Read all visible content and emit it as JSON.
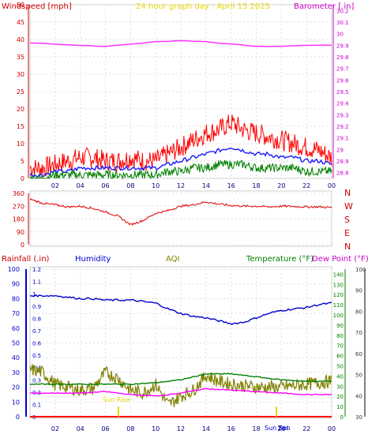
{
  "header": {
    "windspeed_label": "Windspeed [mph]",
    "title": "24 hour graph day : April 15 2025",
    "barometer_label": "Barometer [.in]"
  },
  "lower_header": {
    "rainfall_label": "Rainfall (.in)",
    "humidity_label": "Humidity",
    "aqi_label": "AQI",
    "temperature_label": "Temperature (°F)",
    "dewpoint_label": "Dew Point (°F)"
  },
  "direction_labels": [
    "N",
    "W",
    "S",
    "E",
    "N"
  ],
  "markers": {
    "sunrise": "Sun Rise",
    "sunset": "Sun Set",
    "zenith": "Zen"
  },
  "colors": {
    "wind_gust": "#ff0000",
    "wind_avg": "#1a1aff",
    "wind_speed": "#008000",
    "barometer": "#ff33ff",
    "direction": "#e00000",
    "humidity": "#0000cc",
    "aqi": "#808000",
    "temperature": "#008000",
    "dewpoint": "#ff00ff",
    "rain": "#ff0000",
    "title": "#ffff00"
  },
  "chart_data": [
    {
      "type": "line",
      "panel": "wind-barometer",
      "x_ticks": [
        "02",
        "04",
        "06",
        "08",
        "10",
        "12",
        "14",
        "16",
        "18",
        "20",
        "22",
        "00"
      ],
      "y_left": {
        "label": "Windspeed [mph]",
        "ticks": [
          0,
          5,
          10,
          15,
          20,
          25,
          30,
          35,
          40,
          45,
          50
        ],
        "ylim": [
          0,
          50
        ]
      },
      "y_right": {
        "label": "Barometer [.in]",
        "ticks": [
          "28.8",
          "28.9",
          "29",
          "29.1",
          "29.2",
          "29.3",
          "29.4",
          "29.5",
          "29.6",
          "29.7",
          "29.8",
          "29.9",
          "30",
          "30.1",
          "30.2"
        ],
        "ylim": [
          28.75,
          30.25
        ]
      },
      "series": [
        {
          "name": "Gust",
          "color": "#ff0000",
          "axis": "left",
          "hours": [
            0,
            1,
            2,
            3,
            4,
            5,
            6,
            7,
            8,
            9,
            10,
            11,
            12,
            13,
            14,
            15,
            16,
            17,
            18,
            19,
            20,
            21,
            22,
            23,
            24
          ],
          "values": [
            3,
            3,
            4,
            5,
            6,
            6,
            5,
            5,
            6,
            5,
            5,
            7,
            9,
            11,
            13,
            14,
            16,
            14,
            13,
            12,
            11,
            10,
            9,
            8,
            6
          ]
        },
        {
          "name": "Wind Avg",
          "color": "#1a1aff",
          "axis": "left",
          "hours": [
            0,
            1,
            2,
            3,
            4,
            5,
            6,
            7,
            8,
            9,
            10,
            11,
            12,
            13,
            14,
            15,
            16,
            17,
            18,
            19,
            20,
            21,
            22,
            23,
            24
          ],
          "values": [
            1,
            1,
            2,
            2,
            3,
            3,
            3,
            3,
            3,
            3,
            3,
            4,
            5,
            6,
            7,
            8,
            9,
            8,
            7,
            7,
            6,
            6,
            5,
            5,
            4
          ]
        },
        {
          "name": "Wind Speed",
          "color": "#008000",
          "axis": "left",
          "hours": [
            0,
            1,
            2,
            3,
            4,
            5,
            6,
            7,
            8,
            9,
            10,
            11,
            12,
            13,
            14,
            15,
            16,
            17,
            18,
            19,
            20,
            21,
            22,
            23,
            24
          ],
          "values": [
            0,
            0,
            1,
            1,
            1,
            1,
            1,
            1,
            1,
            1,
            1,
            2,
            2,
            3,
            3,
            4,
            4,
            4,
            3,
            3,
            3,
            3,
            2,
            2,
            2
          ]
        },
        {
          "name": "Barometer",
          "color": "#ff33ff",
          "axis": "right",
          "hours": [
            0,
            2,
            4,
            6,
            8,
            10,
            12,
            14,
            16,
            18,
            20,
            22,
            24
          ],
          "values": [
            29.92,
            29.91,
            29.9,
            29.89,
            29.91,
            29.93,
            29.94,
            29.93,
            29.91,
            29.89,
            29.89,
            29.9,
            29.9
          ]
        }
      ]
    },
    {
      "type": "line",
      "panel": "wind-direction",
      "y_ticks": [
        0,
        90,
        180,
        270,
        360
      ],
      "ylim": [
        0,
        360
      ],
      "series": [
        {
          "name": "Direction",
          "color": "#e00000",
          "hours": [
            0,
            1,
            2,
            3,
            4,
            5,
            6,
            7,
            8,
            9,
            10,
            11,
            12,
            13,
            14,
            15,
            16,
            17,
            18,
            19,
            20,
            21,
            22,
            23,
            24
          ],
          "values": [
            320,
            290,
            280,
            265,
            270,
            255,
            230,
            200,
            140,
            170,
            220,
            240,
            270,
            280,
            300,
            285,
            275,
            270,
            270,
            265,
            270,
            268,
            265,
            265,
            260
          ]
        }
      ]
    },
    {
      "type": "line",
      "panel": "climate",
      "x_ticks": [
        "02",
        "04",
        "06",
        "08",
        "10",
        "12",
        "14",
        "16",
        "18",
        "20",
        "22",
        "00"
      ],
      "y_rain": {
        "label": "Rainfall (.in)",
        "ticks": [
          0,
          0.1,
          0.2,
          0.3,
          0.4,
          0.5,
          0.6,
          0.7,
          0.8,
          0.9,
          1,
          1.1,
          1.2
        ],
        "ylim": [
          0,
          1.2
        ]
      },
      "y_humidity": {
        "label": "Humidity",
        "ticks": [
          0,
          10,
          20,
          30,
          40,
          50,
          60,
          70,
          80,
          90,
          100
        ],
        "ylim": [
          0,
          100
        ]
      },
      "y_temp": {
        "label": "Temperature (°F)",
        "ticks": [
          0,
          10,
          20,
          30,
          40,
          50,
          60,
          70,
          80,
          90,
          100,
          110,
          120,
          130,
          140
        ],
        "ylim": [
          0,
          145
        ]
      },
      "y_dew": {
        "label": "Dew Point (°F)",
        "ticks": [
          30,
          40,
          50,
          60,
          70,
          80,
          90,
          100
        ],
        "ylim": [
          30,
          100
        ]
      },
      "series": [
        {
          "name": "Humidity",
          "color": "#0000cc",
          "axis": "humidity",
          "hours": [
            0,
            1,
            2,
            3,
            4,
            5,
            6,
            7,
            8,
            9,
            10,
            11,
            12,
            13,
            14,
            15,
            16,
            17,
            18,
            19,
            20,
            21,
            22,
            23,
            24
          ],
          "values": [
            82,
            82,
            82,
            81,
            80,
            80,
            79,
            79,
            79,
            78,
            77,
            73,
            70,
            68,
            67,
            65,
            63,
            64,
            67,
            70,
            72,
            73,
            74,
            76,
            77
          ]
        },
        {
          "name": "AQI",
          "color": "#808000",
          "axis": "humidity",
          "hours": [
            0,
            1,
            2,
            3,
            4,
            5,
            6,
            7,
            8,
            9,
            10,
            11,
            12,
            13,
            14,
            15,
            16,
            17,
            18,
            19,
            20,
            21,
            22,
            23,
            24
          ],
          "values": [
            32,
            30,
            22,
            20,
            18,
            19,
            30,
            26,
            18,
            16,
            22,
            8,
            14,
            18,
            28,
            24,
            22,
            21,
            20,
            20,
            20,
            21,
            22,
            23,
            24
          ]
        },
        {
          "name": "Temperature",
          "color": "#008000",
          "axis": "humidity",
          "hours": [
            0,
            2,
            4,
            6,
            8,
            10,
            12,
            14,
            16,
            18,
            20,
            22,
            24
          ],
          "values": [
            22,
            22,
            22,
            22,
            22,
            23,
            25,
            29,
            29,
            27,
            25,
            24,
            24
          ]
        },
        {
          "name": "Dew Point",
          "color": "#ff00ff",
          "axis": "humidity",
          "hours": [
            0,
            2,
            4,
            6,
            8,
            10,
            12,
            14,
            16,
            18,
            20,
            22,
            24
          ],
          "values": [
            16,
            16,
            16,
            17,
            15,
            14,
            16,
            19,
            18,
            17,
            16,
            15,
            15
          ]
        }
      ]
    }
  ]
}
